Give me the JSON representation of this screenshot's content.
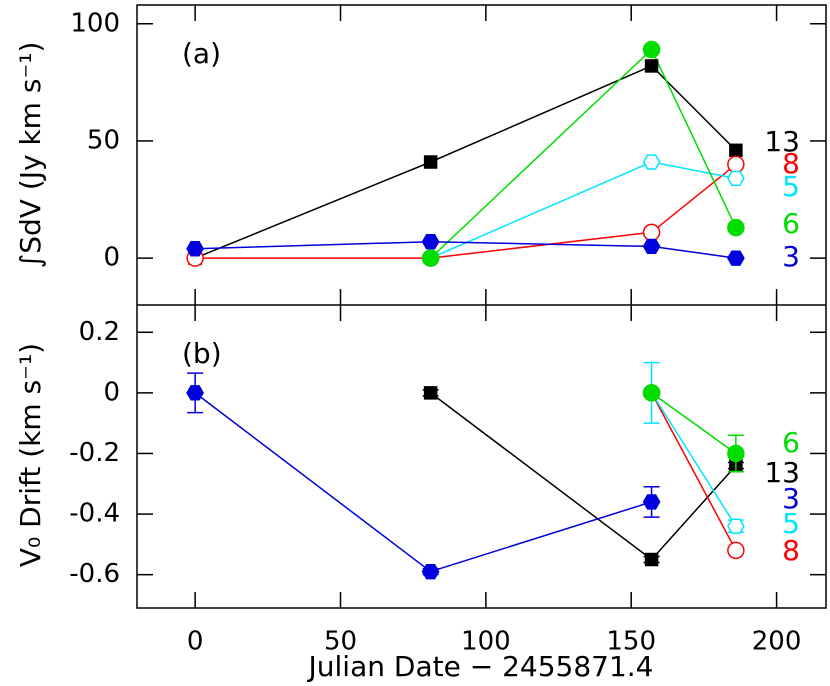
{
  "chart_data": [
    {
      "type": "line",
      "panel_label": "(a)",
      "ylabel": "∫SdV (Jy km s⁻¹)",
      "x": [
        0,
        81,
        157,
        186
      ],
      "xlim": [
        -20,
        217
      ],
      "xticks": [
        0,
        50,
        100,
        150,
        200
      ],
      "ylim": [
        -20,
        108
      ],
      "yticks": [
        0,
        50,
        100
      ],
      "series": [
        {
          "name": "13",
          "color": "#000000",
          "marker": "square",
          "filled": true,
          "values": [
            0,
            41,
            82,
            46
          ]
        },
        {
          "name": "8",
          "color": "#ff0000",
          "marker": "circle",
          "filled": false,
          "values": [
            0,
            0,
            11,
            40
          ]
        },
        {
          "name": "5",
          "color": "#00e5ff",
          "marker": "hexagon",
          "filled": false,
          "values": [
            null,
            0,
            41,
            34
          ]
        },
        {
          "name": "6",
          "color": "#00dd00",
          "marker": "circle",
          "filled": true,
          "values": [
            null,
            0,
            89,
            13
          ]
        },
        {
          "name": "3",
          "color": "#0000dd",
          "marker": "hexagon",
          "filled": true,
          "values": [
            4,
            7,
            5,
            0
          ]
        }
      ]
    },
    {
      "type": "line",
      "panel_label": "(b)",
      "ylabel": "V₀ Drift (km s⁻¹)",
      "xlabel": "Julian Date − 2455871.4",
      "x": [
        0,
        81,
        157,
        186
      ],
      "xlim": [
        -20,
        217
      ],
      "xticks": [
        0,
        50,
        100,
        150,
        200
      ],
      "ylim": [
        -0.71,
        0.29
      ],
      "yticks": [
        -0.6,
        -0.4,
        -0.2,
        0,
        0.2
      ],
      "series": [
        {
          "name": "13",
          "color": "#000000",
          "marker": "square",
          "filled": true,
          "values": [
            null,
            0,
            -0.55,
            -0.24
          ],
          "errors": [
            null,
            0.01,
            0.01,
            0.01
          ]
        },
        {
          "name": "8",
          "color": "#ff0000",
          "marker": "circle",
          "filled": false,
          "values": [
            null,
            null,
            0,
            -0.52
          ],
          "errors": [
            null,
            null,
            0.01,
            0.01
          ]
        },
        {
          "name": "5",
          "color": "#00e5ff",
          "marker": "hexagon",
          "filled": false,
          "values": [
            null,
            null,
            0,
            -0.44
          ],
          "errors": [
            null,
            null,
            0.1,
            0.02
          ]
        },
        {
          "name": "6",
          "color": "#00dd00",
          "marker": "circle",
          "filled": true,
          "values": [
            null,
            null,
            0,
            -0.2
          ],
          "errors": [
            null,
            null,
            0.01,
            0.06
          ]
        },
        {
          "name": "3",
          "color": "#0000dd",
          "marker": "hexagon",
          "filled": true,
          "values": [
            0,
            -0.59,
            -0.36,
            null
          ],
          "errors": [
            0.065,
            0.01,
            0.05,
            null
          ]
        }
      ]
    }
  ]
}
